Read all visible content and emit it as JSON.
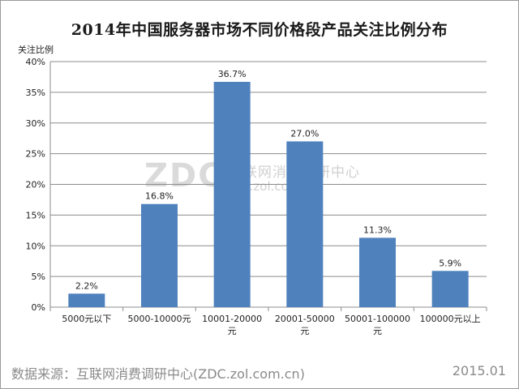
{
  "title": "2014年中国服务器市场不同价格段产品关注比例分布",
  "watermark": {
    "logo": "ZDC",
    "name": "互联网消费调研中心",
    "url": "zdc.zol.com.cn"
  },
  "footer": {
    "source": "数据来源：互联网消费调研中心(ZDC.zol.com.cn)",
    "date": "2015.01"
  },
  "colors": {
    "bar": "#4f81bd",
    "grid": "#8c8c8c",
    "axis": "#8c8c8c"
  },
  "chart_data": {
    "type": "bar",
    "title": "2014年中国服务器市场不同价格段产品关注比例分布",
    "xlabel": "",
    "ylabel": "关注比例",
    "ylim": [
      0,
      40
    ],
    "yticks": [
      "0%",
      "5%",
      "10%",
      "15%",
      "20%",
      "25%",
      "30%",
      "35%",
      "40%"
    ],
    "grid": true,
    "categories": [
      [
        "5000元以下"
      ],
      [
        "5000-10000元"
      ],
      [
        "10001-20000",
        "元"
      ],
      [
        "20001-50000",
        "元"
      ],
      [
        "50001-100000",
        "元"
      ],
      [
        "100000元以上"
      ]
    ],
    "values": [
      2.2,
      16.8,
      36.7,
      27.0,
      11.3,
      5.9
    ],
    "data_labels": [
      "2.2%",
      "16.8%",
      "36.7%",
      "27.0%",
      "11.3%",
      "5.9%"
    ]
  }
}
